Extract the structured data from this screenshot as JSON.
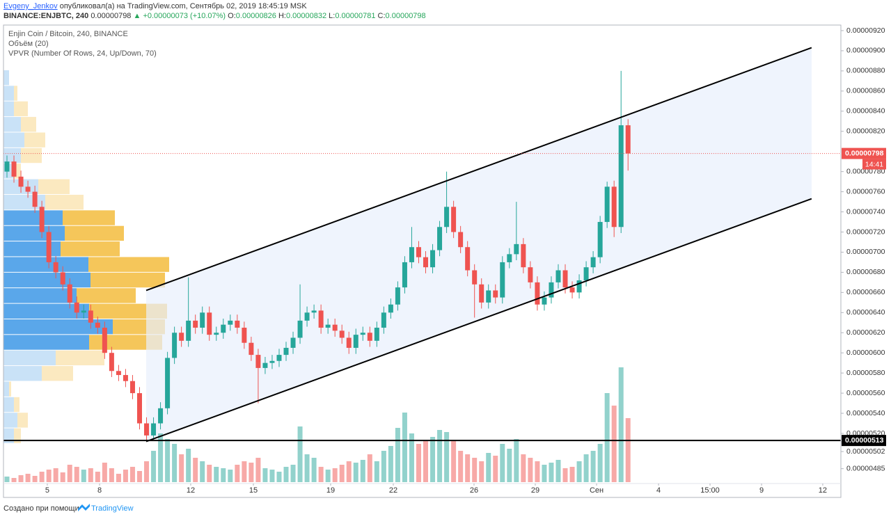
{
  "header": {
    "author": "Evgeny_Jenkov",
    "published": "опубликовал(а) на TradingView.com, Сентябрь 02, 2019 18:45:19 MSK",
    "symbol": "BINANCE:ENJBTC, 240",
    "last": "0.00000798",
    "change": "▲ +0.00000073 (+10.07%)",
    "o_label": "O:",
    "o": "0.00000826",
    "h_label": "H:",
    "h": "0.00000832",
    "l_label": "L:",
    "l": "0.00000781",
    "c_label": "C:",
    "c": "0.00000798"
  },
  "footer": {
    "text": "Создано при помощи",
    "brand": "TradingView"
  },
  "chart_data": {
    "type": "candlestick",
    "title": "Enjin Coin / Bitcoin, 240, BINANCE",
    "up_color": "#26a69a",
    "down_color": "#ef5350",
    "x": [
      0,
      1,
      2,
      3,
      4,
      5,
      6,
      7,
      8,
      9,
      10,
      11,
      12,
      13,
      14,
      15,
      16,
      17,
      18,
      19,
      20,
      21,
      22,
      23,
      24,
      25,
      26,
      27,
      28,
      29,
      30,
      31,
      32,
      33,
      34,
      35,
      36,
      37,
      38,
      39,
      40,
      41,
      42,
      43,
      44,
      45,
      46,
      47,
      48,
      49,
      50,
      51,
      52,
      53,
      54,
      55,
      56,
      57,
      58,
      59,
      60,
      61,
      62,
      63,
      64,
      65,
      66,
      67,
      68,
      69,
      70,
      71,
      72,
      73,
      74,
      75,
      76,
      77,
      78,
      79,
      80,
      81,
      82,
      83,
      84,
      85,
      86,
      87,
      88,
      89
    ],
    "open": [
      7.8e-06,
      7.9e-06,
      7.75e-06,
      7.65e-06,
      7.6e-06,
      7.45e-06,
      7.2e-06,
      6.9e-06,
      6.8e-06,
      6.68e-06,
      6.5e-06,
      6.4e-06,
      6.42e-06,
      6.3e-06,
      6.25e-06,
      6e-06,
      5.82e-06,
      5.78e-06,
      5.72e-06,
      5.6e-06,
      5.3e-06,
      5.18e-06,
      5.3e-06,
      5.45e-06,
      5.95e-06,
      6.2e-06,
      6.12e-06,
      6.32e-06,
      6.25e-06,
      6.4e-06,
      6.18e-06,
      6.2e-06,
      6.28e-06,
      6.32e-06,
      6.25e-06,
      6.1e-06,
      5.98e-06,
      5.85e-06,
      5.9e-06,
      5.92e-06,
      5.98e-06,
      6.05e-06,
      6.15e-06,
      6.32e-06,
      6.4e-06,
      6.42e-06,
      6.25e-06,
      6.28e-06,
      6.22e-06,
      6.15e-06,
      6.05e-06,
      6.18e-06,
      6.2e-06,
      6.12e-06,
      6.25e-06,
      6.4e-06,
      6.48e-06,
      6.65e-06,
      6.9e-06,
      7.05e-06,
      6.95e-06,
      6.85e-06,
      7.02e-06,
      7.25e-06,
      7.45e-06,
      7.2e-06,
      7.05e-06,
      6.82e-06,
      6.68e-06,
      6.5e-06,
      6.62e-06,
      6.55e-06,
      6.9e-06,
      6.98e-06,
      7.08e-06,
      6.85e-06,
      6.7e-06,
      6.48e-06,
      6.55e-06,
      6.7e-06,
      6.82e-06,
      6.65e-06,
      6.6e-06,
      6.72e-06,
      6.85e-06,
      6.95e-06,
      7.3e-06,
      7.65e-06,
      7.25e-06,
      8.26e-06
    ],
    "high": [
      7.96e-06,
      7.96e-06,
      7.81e-06,
      7.71e-06,
      7.66e-06,
      7.51e-06,
      7.26e-06,
      6.96e-06,
      6.86e-06,
      6.74e-06,
      6.56e-06,
      6.48e-06,
      6.48e-06,
      6.36e-06,
      6.31e-06,
      6.06e-06,
      5.88e-06,
      5.84e-06,
      5.78e-06,
      5.66e-06,
      5.36e-06,
      5.36e-06,
      5.51e-06,
      6.01e-06,
      6.26e-06,
      6.26e-06,
      6.75e-06,
      6.38e-06,
      6.46e-06,
      6.46e-06,
      6.26e-06,
      6.34e-06,
      6.38e-06,
      6.38e-06,
      6.31e-06,
      6.16e-06,
      6.04e-06,
      5.96e-06,
      5.98e-06,
      6.04e-06,
      6.11e-06,
      6.21e-06,
      6.68e-06,
      6.46e-06,
      6.48e-06,
      6.48e-06,
      6.34e-06,
      6.34e-06,
      6.28e-06,
      6.21e-06,
      6.24e-06,
      6.26e-06,
      6.26e-06,
      6.31e-06,
      6.46e-06,
      6.54e-06,
      6.71e-06,
      6.96e-06,
      7.25e-06,
      7.11e-06,
      7.01e-06,
      7.08e-06,
      7.31e-06,
      7.8e-06,
      7.51e-06,
      7.26e-06,
      7.11e-06,
      6.88e-06,
      6.74e-06,
      6.68e-06,
      6.68e-06,
      6.96e-06,
      7.04e-06,
      7.5e-06,
      7.14e-06,
      6.91e-06,
      6.76e-06,
      6.61e-06,
      6.76e-06,
      6.88e-06,
      6.88e-06,
      6.71e-06,
      6.78e-06,
      6.91e-06,
      7.01e-06,
      7.36e-06,
      7.7e-06,
      7.71e-06,
      8.8e-06,
      8.32e-06
    ],
    "low": [
      7.74e-06,
      7.69e-06,
      7.59e-06,
      7.54e-06,
      7.39e-06,
      7.14e-06,
      6.84e-06,
      6.74e-06,
      6.62e-06,
      6.44e-06,
      6.34e-06,
      6.34e-06,
      6.24e-06,
      6.19e-06,
      5.94e-06,
      5.76e-06,
      5.72e-06,
      5.66e-06,
      5.54e-06,
      5.24e-06,
      5.13e-06,
      5.14e-06,
      5.24e-06,
      5.39e-06,
      5.89e-06,
      6.06e-06,
      6.06e-06,
      6.19e-06,
      6.19e-06,
      6.12e-06,
      6.12e-06,
      6.14e-06,
      6.22e-06,
      6.19e-06,
      6.04e-06,
      5.92e-06,
      5.5e-06,
      5.79e-06,
      5.84e-06,
      5.86e-06,
      5.92e-06,
      5.99e-06,
      6.09e-06,
      6.26e-06,
      6.34e-06,
      6.19e-06,
      6.19e-06,
      6.16e-06,
      6.09e-06,
      5.99e-06,
      5.99e-06,
      6.12e-06,
      6.06e-06,
      6.06e-06,
      6.19e-06,
      6.34e-06,
      6.42e-06,
      6.59e-06,
      6.84e-06,
      6.89e-06,
      6.79e-06,
      6.79e-06,
      6.96e-06,
      7.19e-06,
      7.14e-06,
      6.99e-06,
      6.76e-06,
      6.35e-06,
      6.44e-06,
      6.44e-06,
      6.49e-06,
      6.49e-06,
      6.84e-06,
      6.92e-06,
      6.79e-06,
      6.64e-06,
      6.42e-06,
      6.42e-06,
      6.49e-06,
      6.64e-06,
      6.59e-06,
      6.54e-06,
      6.54e-06,
      6.66e-06,
      6.79e-06,
      6.89e-06,
      7.24e-06,
      7.15e-06,
      7.19e-06,
      7.81e-06
    ],
    "close": [
      7.9e-06,
      7.75e-06,
      7.65e-06,
      7.6e-06,
      7.45e-06,
      7.2e-06,
      6.9e-06,
      6.8e-06,
      6.68e-06,
      6.5e-06,
      6.4e-06,
      6.42e-06,
      6.3e-06,
      6.25e-06,
      6e-06,
      5.82e-06,
      5.78e-06,
      5.72e-06,
      5.6e-06,
      5.3e-06,
      5.18e-06,
      5.3e-06,
      5.45e-06,
      5.95e-06,
      6.2e-06,
      6.12e-06,
      6.32e-06,
      6.25e-06,
      6.4e-06,
      6.18e-06,
      6.2e-06,
      6.28e-06,
      6.32e-06,
      6.25e-06,
      6.1e-06,
      5.98e-06,
      5.85e-06,
      5.9e-06,
      5.92e-06,
      5.98e-06,
      6.05e-06,
      6.15e-06,
      6.32e-06,
      6.4e-06,
      6.42e-06,
      6.25e-06,
      6.28e-06,
      6.22e-06,
      6.15e-06,
      6.05e-06,
      6.18e-06,
      6.2e-06,
      6.12e-06,
      6.25e-06,
      6.4e-06,
      6.48e-06,
      6.65e-06,
      6.9e-06,
      7.05e-06,
      6.95e-06,
      6.85e-06,
      7.02e-06,
      7.25e-06,
      7.45e-06,
      7.2e-06,
      7.05e-06,
      6.82e-06,
      6.68e-06,
      6.5e-06,
      6.62e-06,
      6.55e-06,
      6.9e-06,
      6.98e-06,
      7.08e-06,
      6.85e-06,
      6.7e-06,
      6.48e-06,
      6.55e-06,
      6.7e-06,
      6.82e-06,
      6.65e-06,
      6.6e-06,
      6.72e-06,
      6.85e-06,
      6.95e-06,
      7.3e-06,
      7.65e-06,
      7.25e-06,
      8.26e-06,
      7.98e-06
    ],
    "volume_title": "Объём (20)",
    "volume": [
      8,
      6,
      10,
      12,
      9,
      15,
      18,
      20,
      14,
      25,
      22,
      18,
      20,
      15,
      28,
      20,
      12,
      18,
      22,
      16,
      30,
      45,
      70,
      62,
      55,
      40,
      48,
      35,
      30,
      25,
      22,
      20,
      18,
      25,
      30,
      28,
      35,
      20,
      18,
      15,
      22,
      25,
      80,
      40,
      35,
      22,
      18,
      20,
      25,
      30,
      28,
      32,
      40,
      30,
      45,
      52,
      78,
      100,
      70,
      55,
      60,
      65,
      75,
      72,
      60,
      45,
      40,
      35,
      30,
      42,
      38,
      55,
      48,
      62,
      40,
      35,
      30,
      25,
      28,
      32,
      20,
      22,
      30,
      40,
      45,
      55,
      128,
      110,
      165,
      92
    ],
    "xlim": [
      -0.5,
      119.5
    ],
    "xticks": [
      {
        "value": 5.78,
        "label": "5"
      },
      {
        "value": 13.27,
        "label": "8"
      },
      {
        "value": 26.33,
        "label": "12"
      },
      {
        "value": 35.31,
        "label": "15"
      },
      {
        "value": 46.38,
        "label": "19"
      },
      {
        "value": 55.36,
        "label": "22"
      },
      {
        "value": 66.93,
        "label": "26"
      },
      {
        "value": 75.71,
        "label": "29"
      },
      {
        "value": 84.49,
        "label": "Сен"
      },
      {
        "value": 93.37,
        "label": "4"
      },
      {
        "value": 100.75,
        "label": "15:00"
      },
      {
        "value": 108.13,
        "label": "9"
      },
      {
        "value": 116.9,
        "label": "12"
      }
    ],
    "ylim": [
      4.7026e-06,
      9.2553e-06
    ],
    "yticks": [
      {
        "value": 9.2e-06,
        "label": "0.00000920"
      },
      {
        "value": 9e-06,
        "label": "0.00000900"
      },
      {
        "value": 8.8e-06,
        "label": "0.00000880"
      },
      {
        "value": 8.6e-06,
        "label": "0.00000860"
      },
      {
        "value": 8.4e-06,
        "label": "0.00000840"
      },
      {
        "value": 8.2e-06,
        "label": "0.00000820"
      },
      {
        "value": 7.8e-06,
        "label": "0.00000780"
      },
      {
        "value": 7.6e-06,
        "label": "0.00000760"
      },
      {
        "value": 7.4e-06,
        "label": "0.00000740"
      },
      {
        "value": 7.2e-06,
        "label": "0.00000720"
      },
      {
        "value": 7e-06,
        "label": "0.00000700"
      },
      {
        "value": 6.8e-06,
        "label": "0.00000680"
      },
      {
        "value": 6.6e-06,
        "label": "0.00000660"
      },
      {
        "value": 6.4e-06,
        "label": "0.00000640"
      },
      {
        "value": 6.2e-06,
        "label": "0.00000620"
      },
      {
        "value": 6e-06,
        "label": "0.00000600"
      },
      {
        "value": 5.8e-06,
        "label": "0.00000580"
      },
      {
        "value": 5.6e-06,
        "label": "0.00000560"
      },
      {
        "value": 5.4e-06,
        "label": "0.00000540"
      },
      {
        "value": 5.2e-06,
        "label": "0.00000520"
      },
      {
        "value": 5.02e-06,
        "label": "0.00000502"
      },
      {
        "value": 4.85e-06,
        "label": "0.00000485"
      }
    ],
    "grid": false,
    "channel": {
      "upper": [
        [
          19.95,
          6.62e-06
        ],
        [
          115.3,
          9.03e-06
        ]
      ],
      "lower": [
        [
          19.95,
          5.12e-06
        ],
        [
          115.3,
          7.53e-06
        ]
      ],
      "line_color": "#000000",
      "fill": "#e8f0fc"
    },
    "hline": {
      "value": 5.13e-06,
      "label": "0.00000513",
      "color": "#000000"
    },
    "last_price": {
      "value": 7.98e-06,
      "label": "0.00000798",
      "color": "#ef5350"
    },
    "countdown": "14:41",
    "vpvr": {
      "title": "VPVR (Number Of Rows, 24, Up/Down, 70)",
      "price_range": [
        5.1e-06,
        8.81e-06
      ],
      "up": [
        8,
        15,
        15,
        25,
        30,
        25,
        15,
        50,
        60,
        85,
        88,
        82,
        122,
        125,
        105,
        123,
        157,
        123,
        75,
        55,
        8,
        15,
        20,
        15
      ],
      "down": [
        0,
        5,
        20,
        22,
        30,
        30,
        10,
        45,
        55,
        75,
        85,
        85,
        116,
        107,
        85,
        112,
        75,
        105,
        70,
        45,
        3,
        8,
        15,
        10
      ],
      "value_area_rows": [
        9,
        17
      ],
      "up_color": "#5aa7ea",
      "down_color": "#f5c65a",
      "up_color_outside": "#c9e2f7",
      "down_color_outside": "#fbe9c0"
    }
  }
}
